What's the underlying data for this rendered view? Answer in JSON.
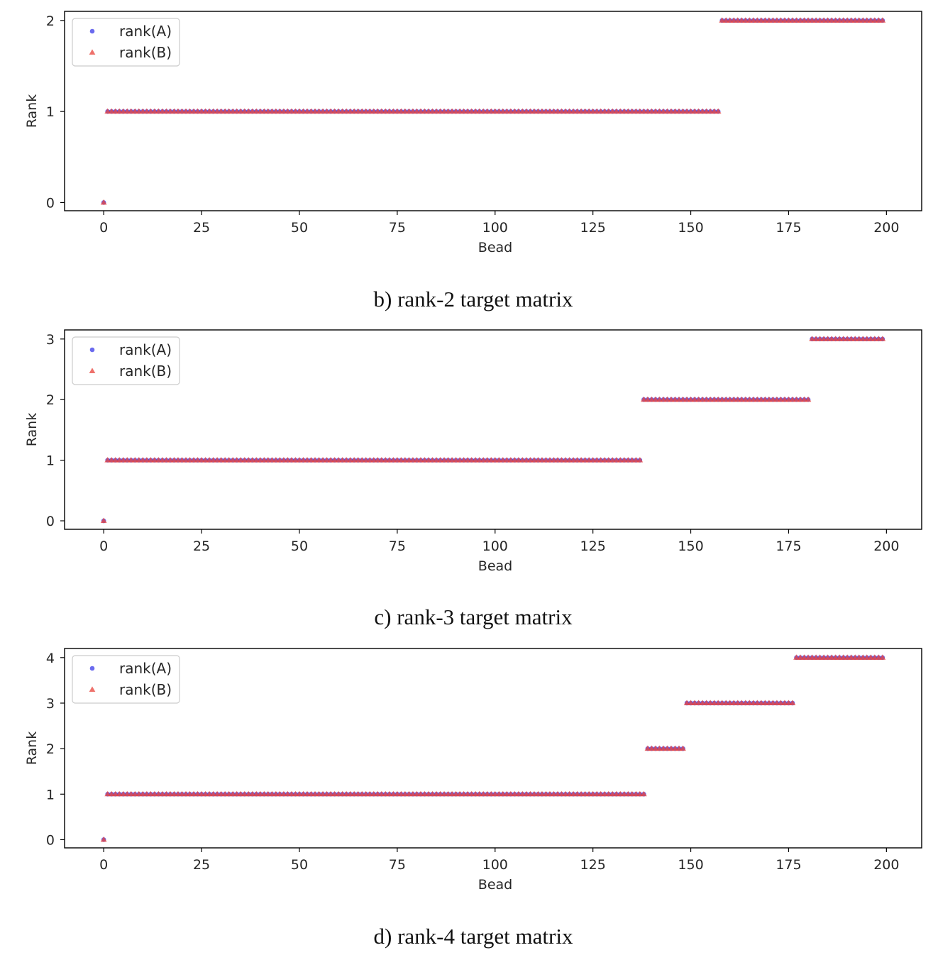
{
  "figure": {
    "colors": {
      "series_a": "#3a3ae8",
      "series_b": "#e8423a",
      "axis": "#000000"
    }
  },
  "chart_data": [
    {
      "type": "scatter",
      "caption": "b) rank-2 target matrix",
      "xlabel": "Bead",
      "ylabel": "Rank",
      "xlim": [
        -10,
        209
      ],
      "ylim": [
        -0.09,
        2.1
      ],
      "xticks": [
        0,
        25,
        50,
        75,
        100,
        125,
        150,
        175,
        200
      ],
      "yticks": [
        0,
        1,
        2
      ],
      "legend": {
        "location": "upper left",
        "entries": [
          "rank(A)",
          "rank(B)"
        ]
      },
      "grid": false,
      "series": [
        {
          "name": "rank(A)",
          "marker": "circle",
          "segments": [
            {
              "x_start": 0,
              "x_end": 0,
              "y": 0
            },
            {
              "x_start": 1,
              "x_end": 157,
              "y": 1
            },
            {
              "x_start": 158,
              "x_end": 199,
              "y": 2
            }
          ]
        },
        {
          "name": "rank(B)",
          "marker": "triangle",
          "segments": [
            {
              "x_start": 0,
              "x_end": 0,
              "y": 0
            },
            {
              "x_start": 1,
              "x_end": 157,
              "y": 1
            },
            {
              "x_start": 158,
              "x_end": 199,
              "y": 2
            }
          ]
        }
      ]
    },
    {
      "type": "scatter",
      "caption": "c) rank-3 target matrix",
      "xlabel": "Bead",
      "ylabel": "Rank",
      "xlim": [
        -10,
        209
      ],
      "ylim": [
        -0.14,
        3.15
      ],
      "xticks": [
        0,
        25,
        50,
        75,
        100,
        125,
        150,
        175,
        200
      ],
      "yticks": [
        0,
        1,
        2,
        3
      ],
      "legend": {
        "location": "upper left",
        "entries": [
          "rank(A)",
          "rank(B)"
        ]
      },
      "grid": false,
      "series": [
        {
          "name": "rank(A)",
          "marker": "circle",
          "segments": [
            {
              "x_start": 0,
              "x_end": 0,
              "y": 0
            },
            {
              "x_start": 1,
              "x_end": 137,
              "y": 1
            },
            {
              "x_start": 138,
              "x_end": 180,
              "y": 2
            },
            {
              "x_start": 181,
              "x_end": 199,
              "y": 3
            }
          ]
        },
        {
          "name": "rank(B)",
          "marker": "triangle",
          "segments": [
            {
              "x_start": 0,
              "x_end": 0,
              "y": 0
            },
            {
              "x_start": 1,
              "x_end": 137,
              "y": 1
            },
            {
              "x_start": 138,
              "x_end": 180,
              "y": 2
            },
            {
              "x_start": 181,
              "x_end": 199,
              "y": 3
            }
          ]
        }
      ]
    },
    {
      "type": "scatter",
      "caption": "d) rank-4 target matrix",
      "xlabel": "Bead",
      "ylabel": "Rank",
      "xlim": [
        -10,
        209
      ],
      "ylim": [
        -0.18,
        4.2
      ],
      "xticks": [
        0,
        25,
        50,
        75,
        100,
        125,
        150,
        175,
        200
      ],
      "yticks": [
        0,
        1,
        2,
        3,
        4
      ],
      "legend": {
        "location": "upper left",
        "entries": [
          "rank(A)",
          "rank(B)"
        ]
      },
      "grid": false,
      "series": [
        {
          "name": "rank(A)",
          "marker": "circle",
          "segments": [
            {
              "x_start": 0,
              "x_end": 0,
              "y": 0
            },
            {
              "x_start": 1,
              "x_end": 138,
              "y": 1
            },
            {
              "x_start": 139,
              "x_end": 148,
              "y": 2
            },
            {
              "x_start": 149,
              "x_end": 176,
              "y": 3
            },
            {
              "x_start": 177,
              "x_end": 199,
              "y": 4
            }
          ]
        },
        {
          "name": "rank(B)",
          "marker": "triangle",
          "segments": [
            {
              "x_start": 0,
              "x_end": 0,
              "y": 0
            },
            {
              "x_start": 1,
              "x_end": 138,
              "y": 1
            },
            {
              "x_start": 139,
              "x_end": 148,
              "y": 2
            },
            {
              "x_start": 149,
              "x_end": 176,
              "y": 3
            },
            {
              "x_start": 177,
              "x_end": 199,
              "y": 4
            }
          ]
        }
      ]
    }
  ]
}
